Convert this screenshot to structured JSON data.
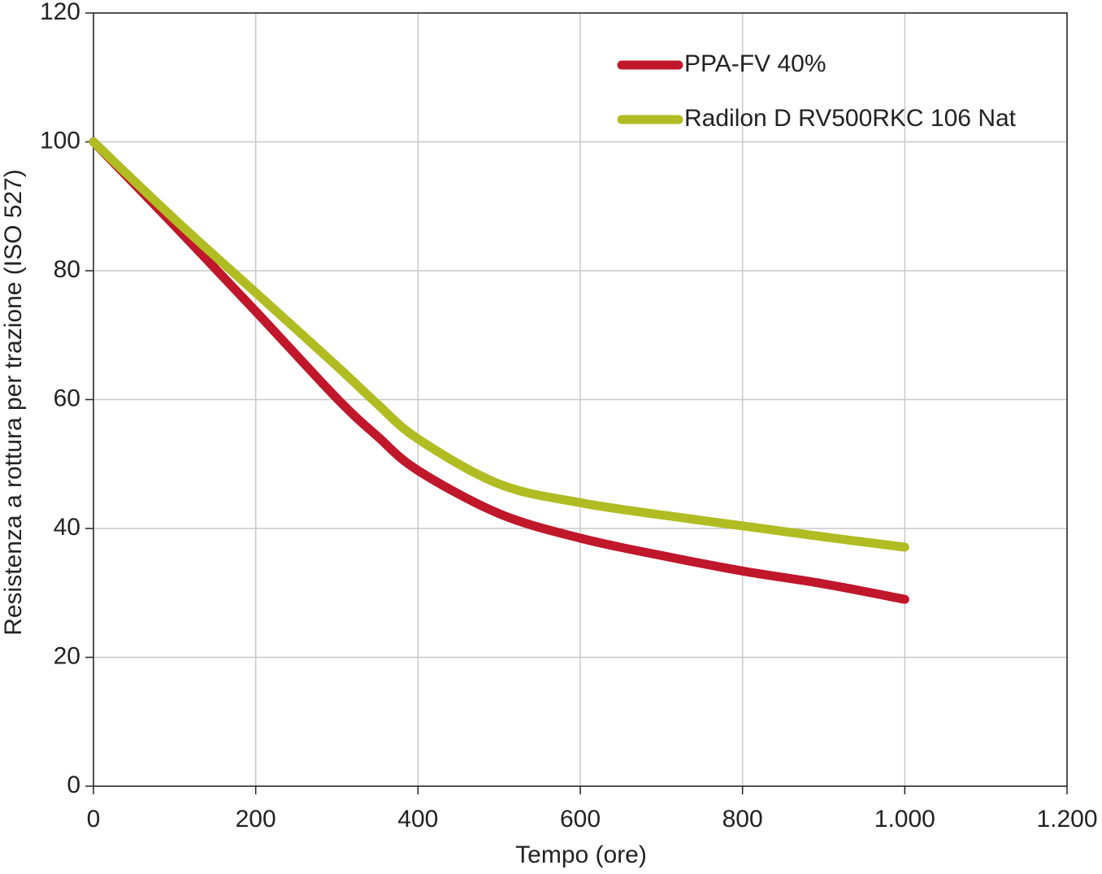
{
  "chart_data": {
    "type": "line",
    "x_label": "Tempo (ore)",
    "y_label": "Resistenza a rottura per trazione (ISO 527)",
    "x": [
      0,
      100,
      200,
      300,
      350,
      400,
      500,
      600,
      700,
      800,
      900,
      1000
    ],
    "series": [
      {
        "name": "PPA-FV 40%",
        "color": "#c0172a",
        "values": [
          100,
          87,
          73.7,
          60.2,
          54.3,
          49,
          42.3,
          38.5,
          35.8,
          33.4,
          31.4,
          29
        ]
      },
      {
        "name": "Radilon D RV500RKC 106 Nat",
        "color": "#b0bc22",
        "values": [
          100,
          88,
          76.6,
          65.2,
          59.3,
          53.9,
          46.9,
          44,
          42.1,
          40.4,
          38.7,
          37.1
        ]
      }
    ],
    "xlim": [
      0,
      1200
    ],
    "xticks": [
      0,
      200,
      400,
      600,
      800,
      {
        "value": 1000,
        "label": "1.000"
      },
      {
        "value": 1200,
        "label": "1.200"
      }
    ],
    "ylim": [
      0,
      120
    ],
    "yticks": [
      0,
      20,
      40,
      60,
      80,
      100,
      120
    ],
    "grid": true,
    "legend": "upper-right"
  }
}
